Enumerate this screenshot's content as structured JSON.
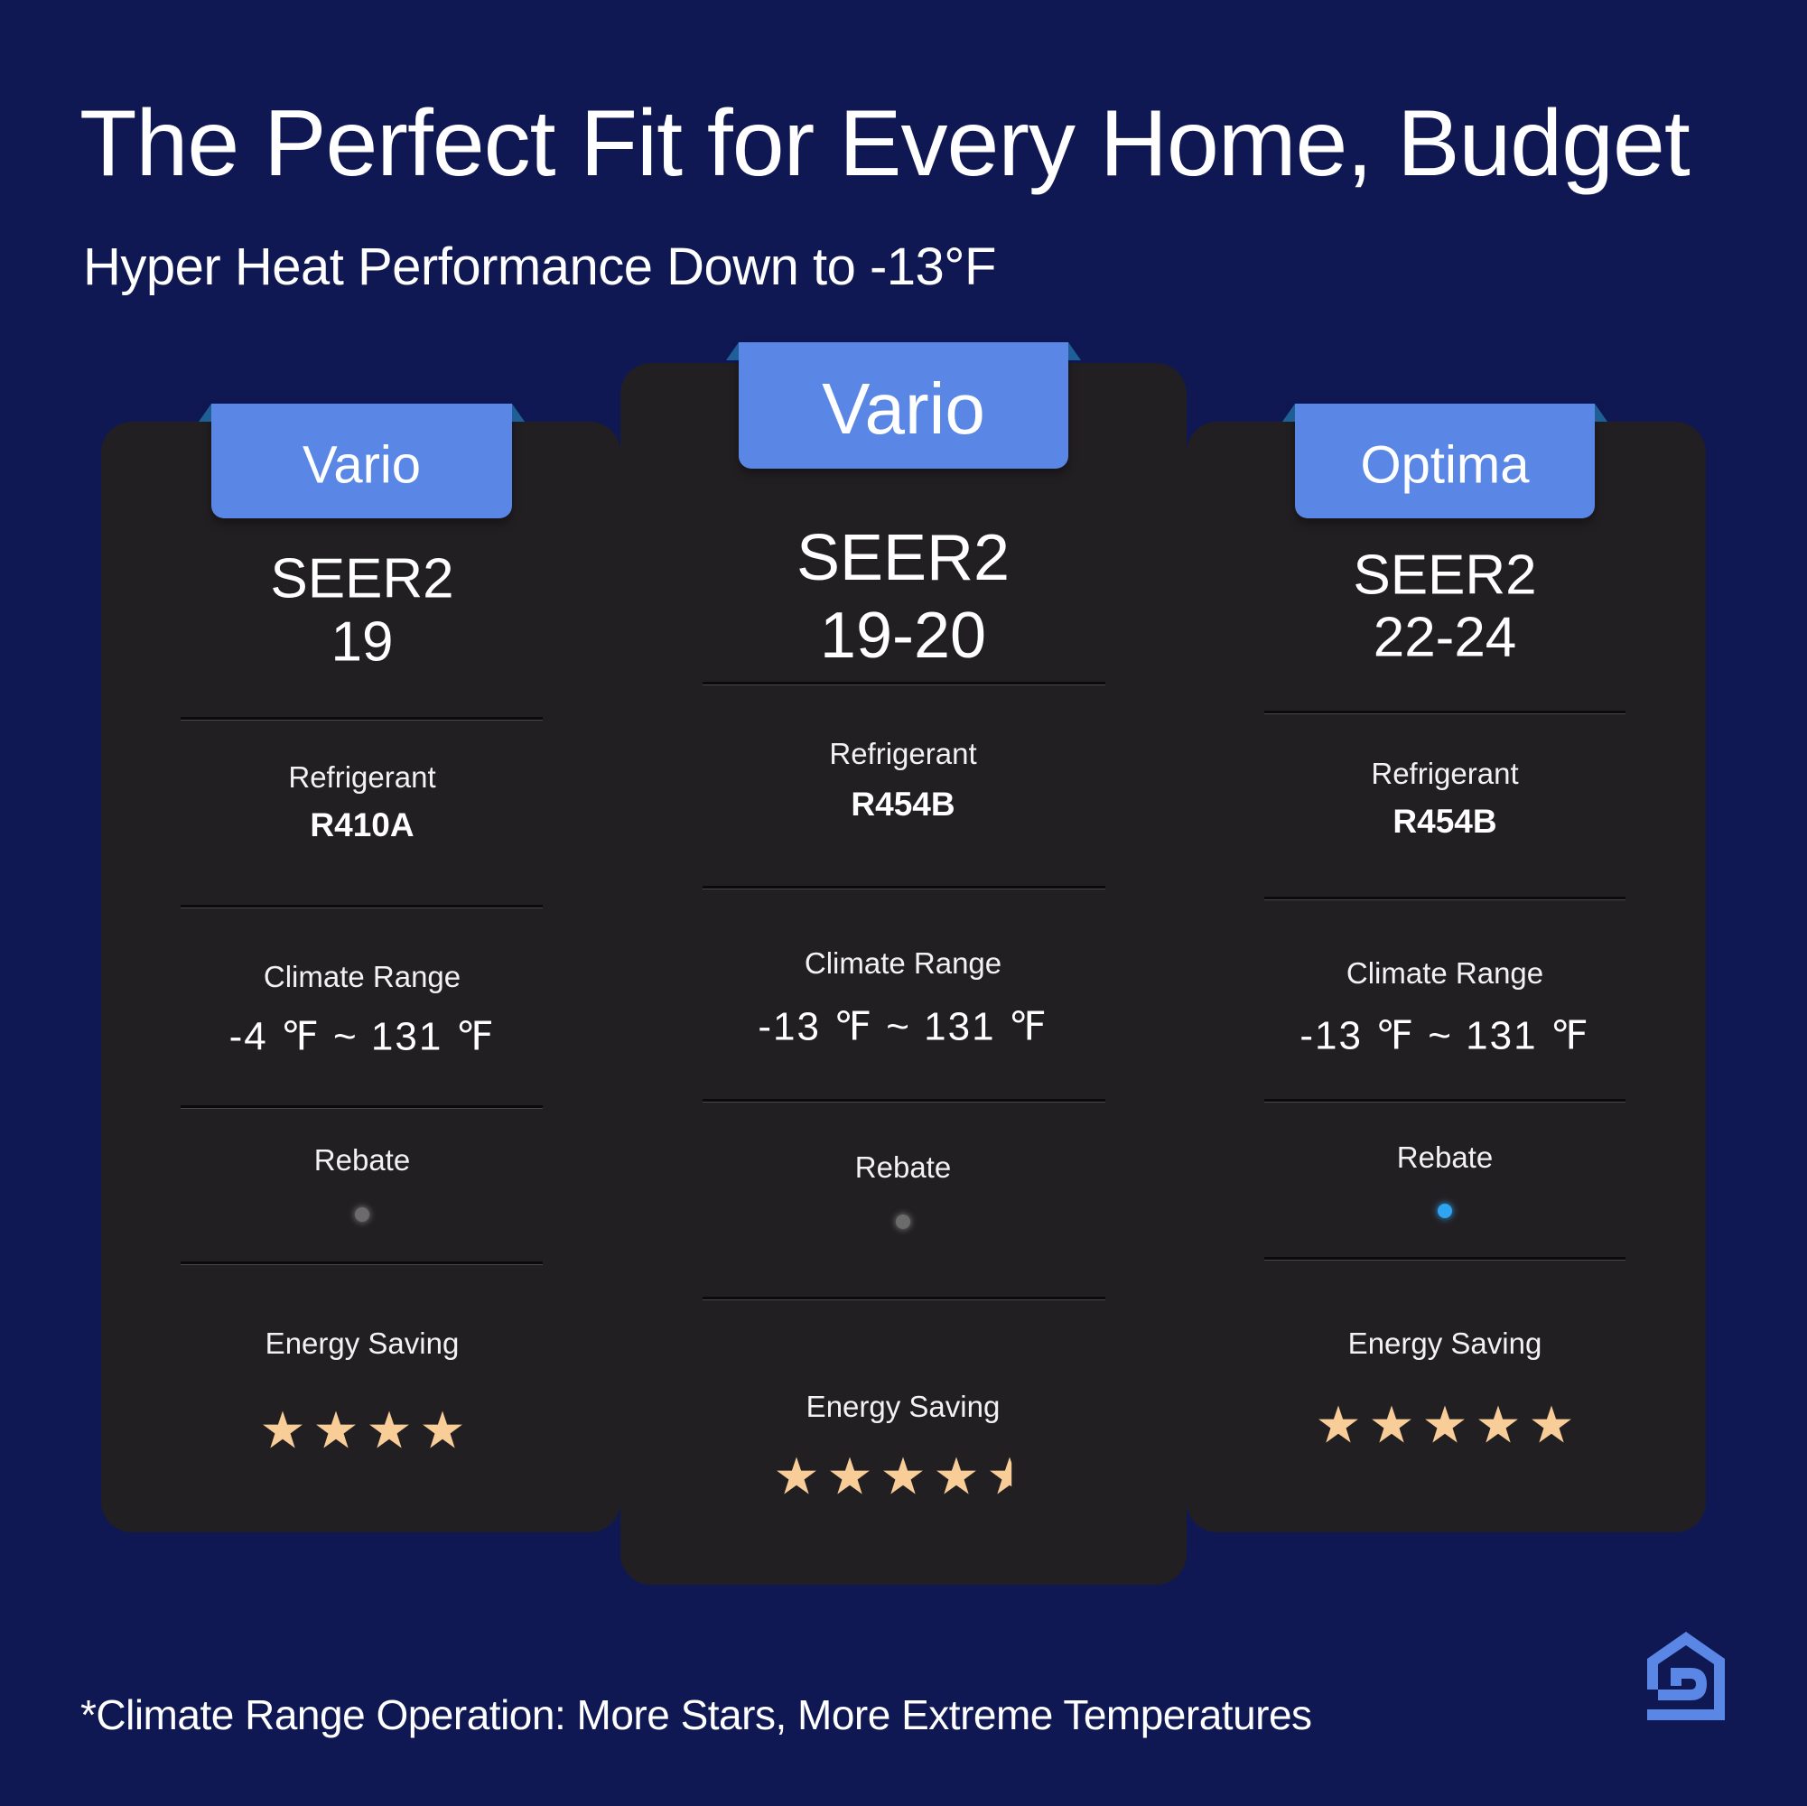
{
  "title": "The Perfect Fit for Every Home, Budget",
  "subtitle": "Hyper Heat Performance Down to -13°F",
  "footnote": "*Climate Range Operation: More Stars, More Extreme Temperatures",
  "colors": {
    "background": "#0f1853",
    "card": "#221f22",
    "tab": "#5a87e6",
    "star": "#f8cd98",
    "rebate_gray": "#6b6b6b",
    "rebate_blue": "#2fa4f0"
  },
  "logo": {
    "icon": "house-d-logo-icon"
  },
  "cards": [
    {
      "tab": "Vario",
      "seer_label": "SEER2",
      "seer_value": "19",
      "refrigerant_label": "Refrigerant",
      "refrigerant": "R410A",
      "climate_label": "Climate Range",
      "climate_range": "-4 ℉ ~ 131 ℉",
      "rebate_label": "Rebate",
      "rebate_indicator": "gray",
      "energy_label": "Energy Saving",
      "energy_stars": 4
    },
    {
      "tab": "Vario",
      "seer_label": "SEER2",
      "seer_value": "19-20",
      "refrigerant_label": "Refrigerant",
      "refrigerant": "R454B",
      "climate_label": "Climate Range",
      "climate_range": "-13 ℉ ~ 131 ℉",
      "rebate_label": "Rebate",
      "rebate_indicator": "gray",
      "energy_label": "Energy Saving",
      "energy_stars": 4.5
    },
    {
      "tab": "Optima",
      "seer_label": "SEER2",
      "seer_value": "22-24",
      "refrigerant_label": "Refrigerant",
      "refrigerant": "R454B",
      "climate_label": "Climate Range",
      "climate_range": "-13 ℉ ~ 131 ℉",
      "rebate_label": "Rebate",
      "rebate_indicator": "blue",
      "energy_label": "Energy Saving",
      "energy_stars": 5
    }
  ]
}
